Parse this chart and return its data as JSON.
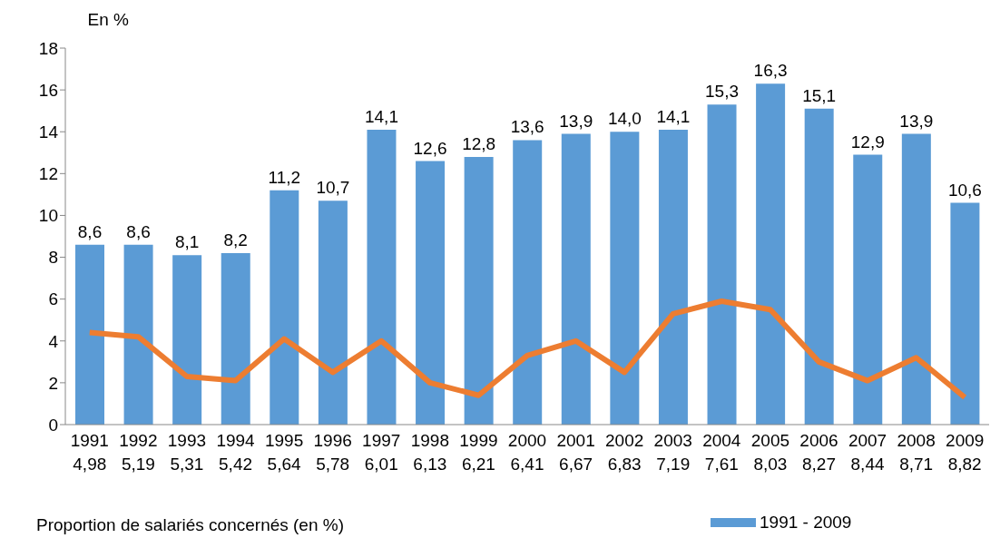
{
  "chart_data": {
    "type": "bar",
    "ylabel": "En %",
    "categories": [
      "1991\n4,98",
      "1992\n5,19",
      "1993\n5,31",
      "1994\n5,42",
      "1995\n5,64",
      "1996\n5,78",
      "1997\n6,01",
      "1998\n6,13",
      "1999\n6,21",
      "2000\n6,41",
      "2001\n6,67",
      "2002\n6,83",
      "2003\n7,19",
      "2004\n7,61",
      "2005\n8,03",
      "2006\n8,27",
      "2007\n8,44",
      "2008\n8,71",
      "2009\n8,82"
    ],
    "series": [
      {
        "name": "1991 - 2009",
        "color": "#5b9bd5",
        "values": [
          8.6,
          8.6,
          8.1,
          8.2,
          11.2,
          10.7,
          14.1,
          12.6,
          12.8,
          13.6,
          13.9,
          14.0,
          14.1,
          15.3,
          16.3,
          15.1,
          12.9,
          13.9,
          10.6
        ],
        "value_labels": [
          "8,6",
          "8,6",
          "8,1",
          "8,2",
          "11,2",
          "10,7",
          "14,1",
          "12,6",
          "12,8",
          "13,6",
          "13,9",
          "14,0",
          "14,1",
          "15,3",
          "16,3",
          "15,1",
          "12,9",
          "13,9",
          "10,6"
        ]
      },
      {
        "type": "line",
        "color": "#ed7d31",
        "values": [
          4.4,
          4.2,
          2.3,
          2.1,
          4.1,
          2.5,
          4.0,
          2.0,
          1.4,
          3.3,
          4.0,
          2.5,
          5.3,
          5.9,
          5.5,
          3.0,
          2.1,
          3.2,
          1.3
        ]
      }
    ],
    "ylim": [
      0,
      18
    ],
    "yticks": [
      0,
      2,
      4,
      6,
      8,
      10,
      12,
      14,
      16,
      18
    ],
    "grid": false,
    "legend": "bottom right",
    "marker": "none",
    "annotations": [
      "Proportion de salariés concernés (en %)"
    ]
  }
}
